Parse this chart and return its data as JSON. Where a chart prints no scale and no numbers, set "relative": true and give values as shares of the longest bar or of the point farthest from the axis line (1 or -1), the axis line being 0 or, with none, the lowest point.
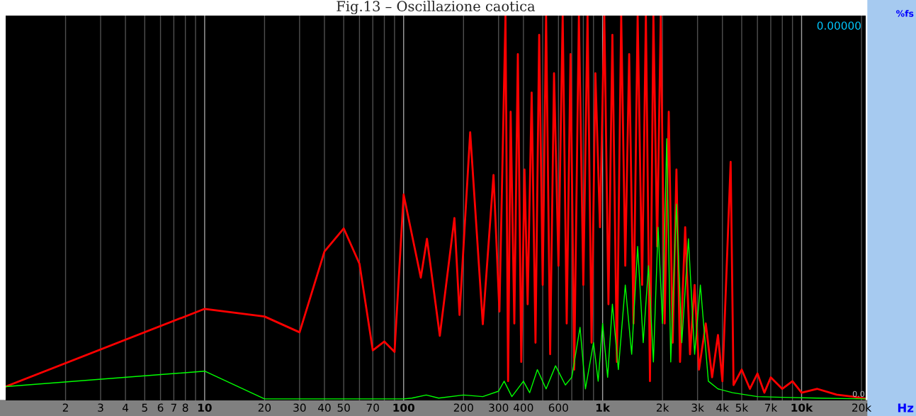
{
  "chart_data": {
    "type": "line",
    "title": "Fig.13 – Oscillazione caotica",
    "xlabel": "Hz",
    "ylabel": "%fs",
    "annotations": [
      "0.00000",
      "0.0"
    ],
    "relative": true,
    "log": "x",
    "grid": "x",
    "legend": false,
    "marker": "none",
    "line_style": "solid",
    "xlim": [
      1,
      21000
    ],
    "xticks": [
      2,
      3,
      4,
      5,
      6,
      7,
      8,
      {
        "value": 9,
        "label": null
      },
      10,
      20,
      30,
      40,
      50,
      {
        "value": 60,
        "label": null
      },
      70,
      {
        "value": 80,
        "label": null
      },
      {
        "value": 90,
        "label": null
      },
      100,
      200,
      300,
      400,
      {
        "value": 500,
        "label": null
      },
      600,
      {
        "value": 700,
        "label": null
      },
      {
        "value": 800,
        "label": null
      },
      {
        "value": 900,
        "label": null
      },
      {
        "value": 1000,
        "label": "1k"
      },
      {
        "value": 2000,
        "label": "2k"
      },
      {
        "value": 3000,
        "label": "3k"
      },
      {
        "value": 4000,
        "label": "4k"
      },
      {
        "value": 5000,
        "label": "5k"
      },
      {
        "value": 6000,
        "label": null
      },
      {
        "value": 7000,
        "label": "7k"
      },
      {
        "value": 8000,
        "label": null
      },
      {
        "value": 9000,
        "label": null
      },
      {
        "value": 10000,
        "label": "10k"
      },
      {
        "value": 20000,
        "label": "20k"
      }
    ],
    "series": [
      {
        "color": "#ff0000",
        "x": [
          1,
          10,
          20,
          30,
          40,
          50,
          60,
          70,
          80,
          90,
          100,
          122,
          131,
          152,
          180,
          191,
          216,
          250,
          283,
          303,
          325,
          335,
          345,
          360,
          375,
          390,
          405,
          420,
          440,
          460,
          480,
          500,
          520,
          545,
          570,
          600,
          630,
          660,
          690,
          720,
          760,
          800,
          840,
          880,
          920,
          970,
          1020,
          1070,
          1120,
          1180,
          1240,
          1300,
          1360,
          1430,
          1500,
          1580,
          1650,
          1730,
          1800,
          1880,
          1960,
          2050,
          2150,
          2250,
          2350,
          2450,
          2600,
          2750,
          2900,
          3050,
          3300,
          3550,
          3800,
          4000,
          4400,
          4550,
          5000,
          5500,
          6000,
          6500,
          7000,
          8000,
          9000,
          10000,
          12000,
          15000,
          18000,
          21000
        ],
        "values": [
          0.036,
          0.238,
          0.218,
          0.177,
          0.387,
          0.447,
          0.355,
          0.13,
          0.153,
          0.126,
          0.535,
          0.319,
          0.42,
          0.168,
          0.474,
          0.222,
          0.697,
          0.198,
          0.586,
          0.231,
          1.0,
          0.05,
          0.75,
          0.2,
          0.9,
          0.1,
          0.6,
          0.25,
          0.8,
          0.15,
          0.95,
          0.3,
          1.0,
          0.12,
          0.85,
          0.35,
          1.0,
          0.2,
          0.9,
          0.08,
          1.0,
          0.3,
          1.0,
          0.15,
          0.85,
          0.45,
          1.0,
          0.25,
          0.95,
          0.1,
          1.0,
          0.35,
          0.9,
          0.2,
          1.0,
          0.3,
          1.0,
          0.05,
          1.0,
          0.4,
          1.0,
          0.2,
          0.75,
          0.15,
          0.6,
          0.1,
          0.45,
          0.12,
          0.3,
          0.08,
          0.2,
          0.06,
          0.17,
          0.05,
          0.62,
          0.04,
          0.08,
          0.03,
          0.07,
          0.02,
          0.06,
          0.03,
          0.05,
          0.02,
          0.03,
          0.015,
          0.01,
          0.005
        ]
      },
      {
        "color": "#00ff00",
        "x": [
          1,
          10,
          20,
          100,
          110,
          130,
          150,
          200,
          250,
          300,
          320,
          350,
          400,
          430,
          470,
          520,
          580,
          650,
          700,
          770,
          820,
          900,
          950,
          1000,
          1060,
          1120,
          1200,
          1300,
          1400,
          1500,
          1600,
          1700,
          1800,
          1900,
          2000,
          2100,
          2200,
          2350,
          2500,
          2700,
          2900,
          3100,
          3400,
          3800,
          4500,
          6000,
          8000,
          12000,
          21000
        ],
        "values": [
          0.036,
          0.076,
          0.004,
          0.004,
          0.006,
          0.014,
          0.006,
          0.014,
          0.01,
          0.024,
          0.05,
          0.01,
          0.05,
          0.02,
          0.08,
          0.03,
          0.09,
          0.04,
          0.06,
          0.19,
          0.03,
          0.15,
          0.05,
          0.2,
          0.06,
          0.25,
          0.08,
          0.3,
          0.12,
          0.4,
          0.15,
          0.35,
          0.1,
          0.45,
          0.2,
          0.68,
          0.1,
          0.51,
          0.15,
          0.42,
          0.12,
          0.3,
          0.05,
          0.03,
          0.02,
          0.01,
          0.008,
          0.006,
          0.004
        ]
      }
    ]
  }
}
